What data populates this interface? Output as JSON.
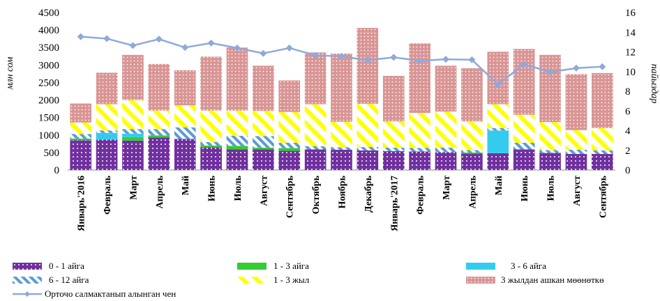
{
  "chart_data": {
    "type": "bar",
    "stacked": true,
    "title": "",
    "ylabel": "млн сом",
    "y2label": "пайыздар",
    "ylim": [
      0,
      4500
    ],
    "y2lim": [
      0,
      16
    ],
    "yticks": [
      "0",
      "500",
      "1000",
      "1500",
      "2000",
      "2500",
      "3000",
      "3500",
      "4000",
      "4500"
    ],
    "y2ticks": [
      "0",
      "2",
      "4",
      "6",
      "8",
      "10",
      "12",
      "14",
      "16"
    ],
    "categories": [
      "Январь'2016",
      "Февраль",
      "Март",
      "Апрель",
      "Май",
      "Июнь",
      "Июль",
      "Август",
      "Сентябрь",
      "Октябрь",
      "Ноябрь",
      "Декабрь",
      "Январь'2017",
      "Февраль",
      "Март",
      "Апрель",
      "Май",
      "Июнь",
      "Июль",
      "Август",
      "Сентябрь"
    ],
    "series": [
      {
        "name": "0 - 1 айга",
        "color": "#7030A0",
        "values": [
          850,
          870,
          840,
          930,
          890,
          650,
          590,
          590,
          550,
          590,
          580,
          560,
          540,
          530,
          510,
          470,
          480,
          590,
          490,
          460,
          460
        ]
      },
      {
        "name": "1 - 3 айга",
        "color": "#33CC33",
        "values": [
          50,
          0,
          100,
          60,
          0,
          50,
          100,
          50,
          80,
          0,
          0,
          0,
          0,
          0,
          0,
          30,
          0,
          0,
          0,
          0,
          0
        ]
      },
      {
        "name": "3 - 6 айга",
        "color": "#33CCEE",
        "values": [
          0,
          190,
          100,
          0,
          0,
          0,
          0,
          0,
          0,
          0,
          0,
          0,
          0,
          0,
          0,
          0,
          650,
          0,
          0,
          0,
          0
        ]
      },
      {
        "name": "6 - 12 айга",
        "color": "#5B9BD5",
        "values": [
          130,
          70,
          130,
          180,
          330,
          100,
          290,
          330,
          150,
          90,
          70,
          100,
          100,
          100,
          130,
          70,
          70,
          190,
          80,
          120,
          100
        ]
      },
      {
        "name": "1 - 3 жыл",
        "color": "#FFFF00",
        "values": [
          330,
          750,
          830,
          530,
          630,
          900,
          720,
          720,
          880,
          1200,
          730,
          1230,
          750,
          1000,
          1030,
          820,
          680,
          800,
          800,
          560,
          640
        ]
      },
      {
        "name": "3 жылдан ашкан мөөнөткө",
        "color": "#D99594",
        "values": [
          540,
          900,
          1290,
          1330,
          1000,
          1540,
          1800,
          1290,
          900,
          1480,
          1950,
          2170,
          1300,
          1990,
          1310,
          1520,
          1500,
          1880,
          1920,
          1600,
          1570
        ]
      }
    ],
    "line": {
      "name": "Орточо салмактанып алынган чен",
      "color": "#8EA9DB",
      "axis": "right",
      "values": [
        13.55,
        13.35,
        12.65,
        13.3,
        12.45,
        12.9,
        12.4,
        11.85,
        12.4,
        11.65,
        11.55,
        11.15,
        11.45,
        11.1,
        11.25,
        11.2,
        8.7,
        10.75,
        9.95,
        10.35,
        10.5
      ]
    }
  },
  "legend": {
    "items": [
      {
        "key": "s0",
        "label": "0 - 1 айга"
      },
      {
        "key": "s1",
        "label": "1 - 3 айга"
      },
      {
        "key": "s2",
        "label": "3 - 6 айга"
      },
      {
        "key": "s3",
        "label": "6 - 12 айга"
      },
      {
        "key": "s4",
        "label": "1 - 3 жыл"
      },
      {
        "key": "s5",
        "label": "3 жылдан ашкан мөөнөткө"
      },
      {
        "key": "line",
        "label": "Орточо салмактанып алынган чен"
      }
    ]
  }
}
